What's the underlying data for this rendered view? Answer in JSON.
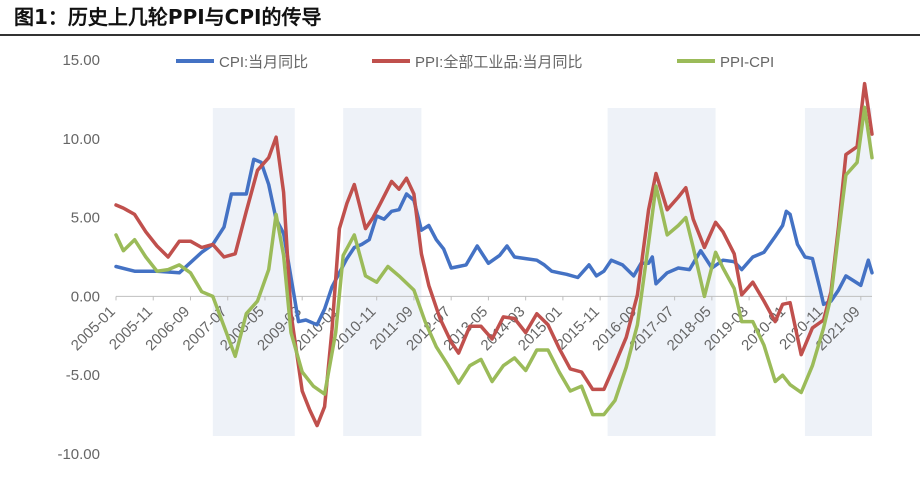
{
  "title": "图1：历史上几轮PPI与CPI的传导",
  "chart_data": {
    "type": "line",
    "title": "图1：历史上几轮PPI与CPI的传导",
    "ylim": [
      -10,
      15
    ],
    "yticks": [
      "15.00",
      "10.00",
      "5.00",
      "0.00",
      "-5.00",
      "-10.00"
    ],
    "ytick_values": [
      15,
      10,
      5,
      0,
      -5,
      -10
    ],
    "x_start": "2005-01",
    "x_end": "2021-12",
    "xticks": [
      "2005-01",
      "2005-11",
      "2006-09",
      "2007-07",
      "2008-05",
      "2009-03",
      "2010-01",
      "2010-11",
      "2011-09",
      "2012-07",
      "2013-05",
      "2014-03",
      "2015-01",
      "2015-11",
      "2016-09",
      "2017-07",
      "2018-05",
      "2019-03",
      "2020-01",
      "2020-11",
      "2021-09"
    ],
    "legend_position": "top",
    "shaded_periods": [
      [
        "2007-03",
        "2009-01"
      ],
      [
        "2010-02",
        "2011-11"
      ],
      [
        "2016-01",
        "2018-06"
      ],
      [
        "2020-06",
        "2021-12"
      ]
    ],
    "series": [
      {
        "name": "CPI:当月同比",
        "color": "#4472C4",
        "points": [
          [
            "2005-01",
            1.9
          ],
          [
            "2005-06",
            1.6
          ],
          [
            "2005-12",
            1.6
          ],
          [
            "2006-06",
            1.5
          ],
          [
            "2006-12",
            2.8
          ],
          [
            "2007-03",
            3.3
          ],
          [
            "2007-06",
            4.4
          ],
          [
            "2007-08",
            6.5
          ],
          [
            "2007-12",
            6.5
          ],
          [
            "2008-02",
            8.7
          ],
          [
            "2008-04",
            8.5
          ],
          [
            "2008-06",
            7.1
          ],
          [
            "2008-08",
            4.9
          ],
          [
            "2008-10",
            4.0
          ],
          [
            "2008-12",
            1.2
          ],
          [
            "2009-02",
            -1.6
          ],
          [
            "2009-04",
            -1.5
          ],
          [
            "2009-07",
            -1.8
          ],
          [
            "2009-09",
            -0.8
          ],
          [
            "2009-11",
            0.6
          ],
          [
            "2010-01",
            1.5
          ],
          [
            "2010-03",
            2.4
          ],
          [
            "2010-05",
            3.1
          ],
          [
            "2010-07",
            3.3
          ],
          [
            "2010-09",
            3.6
          ],
          [
            "2010-11",
            5.1
          ],
          [
            "2011-01",
            4.9
          ],
          [
            "2011-03",
            5.4
          ],
          [
            "2011-05",
            5.5
          ],
          [
            "2011-07",
            6.5
          ],
          [
            "2011-09",
            6.1
          ],
          [
            "2011-11",
            4.2
          ],
          [
            "2012-01",
            4.5
          ],
          [
            "2012-03",
            3.6
          ],
          [
            "2012-05",
            3.0
          ],
          [
            "2012-07",
            1.8
          ],
          [
            "2012-09",
            1.9
          ],
          [
            "2012-11",
            2.0
          ],
          [
            "2013-02",
            3.2
          ],
          [
            "2013-05",
            2.1
          ],
          [
            "2013-08",
            2.6
          ],
          [
            "2013-10",
            3.2
          ],
          [
            "2013-12",
            2.5
          ],
          [
            "2014-03",
            2.4
          ],
          [
            "2014-06",
            2.3
          ],
          [
            "2014-08",
            2.0
          ],
          [
            "2014-10",
            1.6
          ],
          [
            "2014-12",
            1.5
          ],
          [
            "2015-02",
            1.4
          ],
          [
            "2015-05",
            1.2
          ],
          [
            "2015-08",
            2.0
          ],
          [
            "2015-10",
            1.3
          ],
          [
            "2015-12",
            1.6
          ],
          [
            "2016-02",
            2.3
          ],
          [
            "2016-05",
            2.0
          ],
          [
            "2016-08",
            1.3
          ],
          [
            "2016-10",
            2.1
          ],
          [
            "2016-12",
            2.1
          ],
          [
            "2017-01",
            2.5
          ],
          [
            "2017-02",
            0.8
          ],
          [
            "2017-05",
            1.5
          ],
          [
            "2017-08",
            1.8
          ],
          [
            "2017-11",
            1.7
          ],
          [
            "2018-02",
            2.9
          ],
          [
            "2018-05",
            1.8
          ],
          [
            "2018-08",
            2.3
          ],
          [
            "2018-11",
            2.2
          ],
          [
            "2019-01",
            1.7
          ],
          [
            "2019-04",
            2.5
          ],
          [
            "2019-07",
            2.8
          ],
          [
            "2019-10",
            3.8
          ],
          [
            "2019-12",
            4.5
          ],
          [
            "2020-01",
            5.4
          ],
          [
            "2020-02",
            5.2
          ],
          [
            "2020-04",
            3.3
          ],
          [
            "2020-06",
            2.5
          ],
          [
            "2020-08",
            2.4
          ],
          [
            "2020-10",
            0.5
          ],
          [
            "2020-11",
            -0.5
          ],
          [
            "2021-01",
            -0.3
          ],
          [
            "2021-03",
            0.4
          ],
          [
            "2021-05",
            1.3
          ],
          [
            "2021-07",
            1.0
          ],
          [
            "2021-09",
            0.7
          ],
          [
            "2021-11",
            2.3
          ],
          [
            "2021-12",
            1.5
          ]
        ]
      },
      {
        "name": "PPI:全部工业品:当月同比",
        "color": "#C0504D",
        "points": [
          [
            "2005-01",
            5.8
          ],
          [
            "2005-03",
            5.6
          ],
          [
            "2005-06",
            5.2
          ],
          [
            "2005-09",
            4.1
          ],
          [
            "2005-12",
            3.2
          ],
          [
            "2006-03",
            2.5
          ],
          [
            "2006-06",
            3.5
          ],
          [
            "2006-09",
            3.5
          ],
          [
            "2006-12",
            3.1
          ],
          [
            "2007-03",
            3.3
          ],
          [
            "2007-06",
            2.5
          ],
          [
            "2007-09",
            2.7
          ],
          [
            "2007-12",
            5.4
          ],
          [
            "2008-03",
            8.0
          ],
          [
            "2008-06",
            8.8
          ],
          [
            "2008-08",
            10.1
          ],
          [
            "2008-10",
            6.6
          ],
          [
            "2008-12",
            -1.1
          ],
          [
            "2009-03",
            -6.0
          ],
          [
            "2009-05",
            -7.2
          ],
          [
            "2009-07",
            -8.2
          ],
          [
            "2009-09",
            -7.0
          ],
          [
            "2009-11",
            -2.1
          ],
          [
            "2010-01",
            4.3
          ],
          [
            "2010-03",
            5.9
          ],
          [
            "2010-05",
            7.1
          ],
          [
            "2010-08",
            4.3
          ],
          [
            "2010-10",
            5.0
          ],
          [
            "2010-12",
            5.9
          ],
          [
            "2011-03",
            7.3
          ],
          [
            "2011-05",
            6.8
          ],
          [
            "2011-07",
            7.5
          ],
          [
            "2011-09",
            6.5
          ],
          [
            "2011-11",
            2.7
          ],
          [
            "2012-01",
            0.7
          ],
          [
            "2012-04",
            -1.4
          ],
          [
            "2012-07",
            -2.9
          ],
          [
            "2012-09",
            -3.6
          ],
          [
            "2012-12",
            -1.9
          ],
          [
            "2013-03",
            -1.9
          ],
          [
            "2013-06",
            -2.7
          ],
          [
            "2013-09",
            -1.3
          ],
          [
            "2013-12",
            -1.4
          ],
          [
            "2014-03",
            -2.3
          ],
          [
            "2014-06",
            -1.1
          ],
          [
            "2014-09",
            -1.8
          ],
          [
            "2014-12",
            -3.3
          ],
          [
            "2015-03",
            -4.6
          ],
          [
            "2015-06",
            -4.8
          ],
          [
            "2015-09",
            -5.9
          ],
          [
            "2015-12",
            -5.9
          ],
          [
            "2016-03",
            -4.3
          ],
          [
            "2016-06",
            -2.6
          ],
          [
            "2016-09",
            0.1
          ],
          [
            "2016-12",
            5.5
          ],
          [
            "2017-02",
            7.8
          ],
          [
            "2017-05",
            5.5
          ],
          [
            "2017-08",
            6.3
          ],
          [
            "2017-10",
            6.9
          ],
          [
            "2017-12",
            4.9
          ],
          [
            "2018-03",
            3.1
          ],
          [
            "2018-06",
            4.7
          ],
          [
            "2018-08",
            4.1
          ],
          [
            "2018-11",
            2.7
          ],
          [
            "2019-01",
            0.1
          ],
          [
            "2019-04",
            0.9
          ],
          [
            "2019-07",
            -0.3
          ],
          [
            "2019-10",
            -1.6
          ],
          [
            "2019-12",
            -0.5
          ],
          [
            "2020-02",
            -0.4
          ],
          [
            "2020-05",
            -3.7
          ],
          [
            "2020-08",
            -2.0
          ],
          [
            "2020-11",
            -1.5
          ],
          [
            "2021-01",
            0.3
          ],
          [
            "2021-03",
            4.4
          ],
          [
            "2021-05",
            9.0
          ],
          [
            "2021-08",
            9.5
          ],
          [
            "2021-10",
            13.5
          ],
          [
            "2021-12",
            10.3
          ]
        ]
      },
      {
        "name": "PPI-CPI",
        "color": "#9BBB59",
        "points": [
          [
            "2005-01",
            3.9
          ],
          [
            "2005-03",
            2.9
          ],
          [
            "2005-06",
            3.6
          ],
          [
            "2005-09",
            2.5
          ],
          [
            "2005-12",
            1.6
          ],
          [
            "2006-03",
            1.7
          ],
          [
            "2006-06",
            2.0
          ],
          [
            "2006-09",
            1.5
          ],
          [
            "2006-12",
            0.3
          ],
          [
            "2007-03",
            0.0
          ],
          [
            "2007-06",
            -1.9
          ],
          [
            "2007-09",
            -3.8
          ],
          [
            "2007-12",
            -1.1
          ],
          [
            "2008-03",
            -0.3
          ],
          [
            "2008-06",
            1.7
          ],
          [
            "2008-08",
            5.2
          ],
          [
            "2008-10",
            2.6
          ],
          [
            "2008-12",
            -2.3
          ],
          [
            "2009-03",
            -4.8
          ],
          [
            "2009-06",
            -5.7
          ],
          [
            "2009-09",
            -6.2
          ],
          [
            "2009-12",
            -2.3
          ],
          [
            "2010-02",
            2.6
          ],
          [
            "2010-05",
            3.9
          ],
          [
            "2010-08",
            1.3
          ],
          [
            "2010-11",
            0.9
          ],
          [
            "2011-02",
            1.9
          ],
          [
            "2011-05",
            1.3
          ],
          [
            "2011-09",
            0.4
          ],
          [
            "2011-12",
            -1.6
          ],
          [
            "2012-03",
            -3.2
          ],
          [
            "2012-06",
            -4.3
          ],
          [
            "2012-09",
            -5.5
          ],
          [
            "2012-12",
            -4.4
          ],
          [
            "2013-03",
            -4.0
          ],
          [
            "2013-06",
            -5.4
          ],
          [
            "2013-09",
            -4.4
          ],
          [
            "2013-12",
            -3.9
          ],
          [
            "2014-03",
            -4.7
          ],
          [
            "2014-06",
            -3.4
          ],
          [
            "2014-09",
            -3.4
          ],
          [
            "2014-12",
            -4.8
          ],
          [
            "2015-03",
            -6.0
          ],
          [
            "2015-06",
            -5.7
          ],
          [
            "2015-09",
            -7.5
          ],
          [
            "2015-12",
            -7.5
          ],
          [
            "2016-03",
            -6.6
          ],
          [
            "2016-06",
            -4.5
          ],
          [
            "2016-09",
            -1.8
          ],
          [
            "2016-12",
            3.4
          ],
          [
            "2017-02",
            7.0
          ],
          [
            "2017-05",
            3.9
          ],
          [
            "2017-08",
            4.5
          ],
          [
            "2017-10",
            5.0
          ],
          [
            "2017-12",
            3.1
          ],
          [
            "2018-03",
            0.0
          ],
          [
            "2018-06",
            2.8
          ],
          [
            "2018-08",
            1.8
          ],
          [
            "2018-11",
            0.5
          ],
          [
            "2019-01",
            -1.6
          ],
          [
            "2019-04",
            -1.6
          ],
          [
            "2019-07",
            -3.1
          ],
          [
            "2019-10",
            -5.4
          ],
          [
            "2019-12",
            -5.0
          ],
          [
            "2020-02",
            -5.6
          ],
          [
            "2020-05",
            -6.1
          ],
          [
            "2020-08",
            -4.4
          ],
          [
            "2020-11",
            -2.0
          ],
          [
            "2021-01",
            0.0
          ],
          [
            "2021-03",
            4.0
          ],
          [
            "2021-05",
            7.7
          ],
          [
            "2021-08",
            8.5
          ],
          [
            "2021-10",
            12.0
          ],
          [
            "2021-12",
            8.8
          ]
        ]
      }
    ]
  }
}
